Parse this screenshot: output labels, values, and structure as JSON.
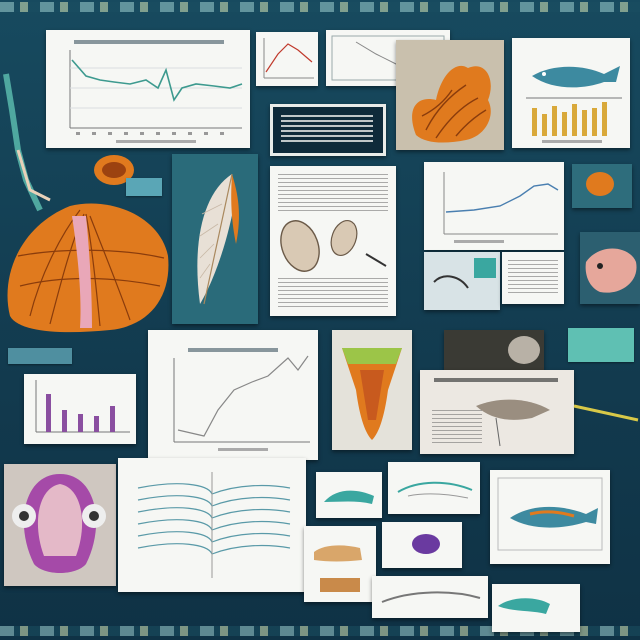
{
  "board": {
    "background": "#143f54",
    "accent_orange": "#e07a1e",
    "accent_teal": "#3aa7a0",
    "accent_purple": "#9b3f9e",
    "paper": "#f6f7f4"
  },
  "icons": [
    "anatomy-illustration",
    "line-chart",
    "bar-chart",
    "scanned-document",
    "fish-diagram",
    "feather-illustration"
  ]
}
